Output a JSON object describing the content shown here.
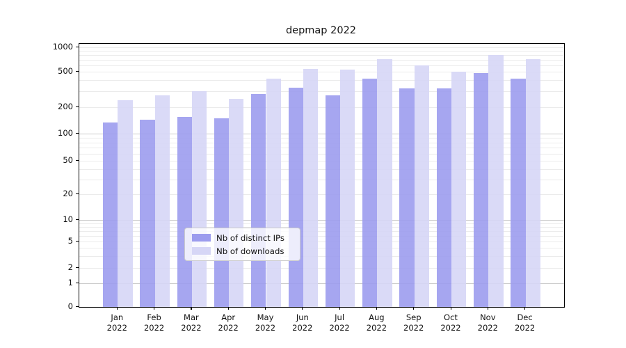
{
  "title": "depmap 2022",
  "chart_data": {
    "type": "bar",
    "title": "depmap 2022",
    "categories": [
      "Jan",
      "Feb",
      "Mar",
      "Apr",
      "May",
      "Jun",
      "Jul",
      "Aug",
      "Sep",
      "Oct",
      "Nov",
      "Dec"
    ],
    "category_year": "2022",
    "x_tick_labels": [
      "Jan 2022",
      "Feb 2022",
      "Mar 2022",
      "Apr 2022",
      "May 2022",
      "Jun 2022",
      "Jul 2022",
      "Aug 2022",
      "Sep 2022",
      "Oct 2022",
      "Nov 2022",
      "Dec 2022"
    ],
    "series": [
      {
        "name": "Nb of distinct IPs",
        "color": "#9c9cee",
        "values": [
          135,
          145,
          155,
          150,
          280,
          330,
          270,
          420,
          325,
          325,
          480,
          420
        ]
      },
      {
        "name": "Nb of downloads",
        "color": "#d6d6f6",
        "values": [
          240,
          270,
          305,
          250,
          420,
          545,
          535,
          720,
          600,
          500,
          800,
          710
        ]
      }
    ],
    "xlabel": "",
    "ylabel": "",
    "yscale": "symlog",
    "y_ticks": [
      1000,
      500,
      200,
      100,
      50,
      20,
      10,
      5,
      2,
      1,
      0
    ],
    "ylim": [
      0,
      1100
    ],
    "grid": true,
    "legend_position": "lower center"
  }
}
